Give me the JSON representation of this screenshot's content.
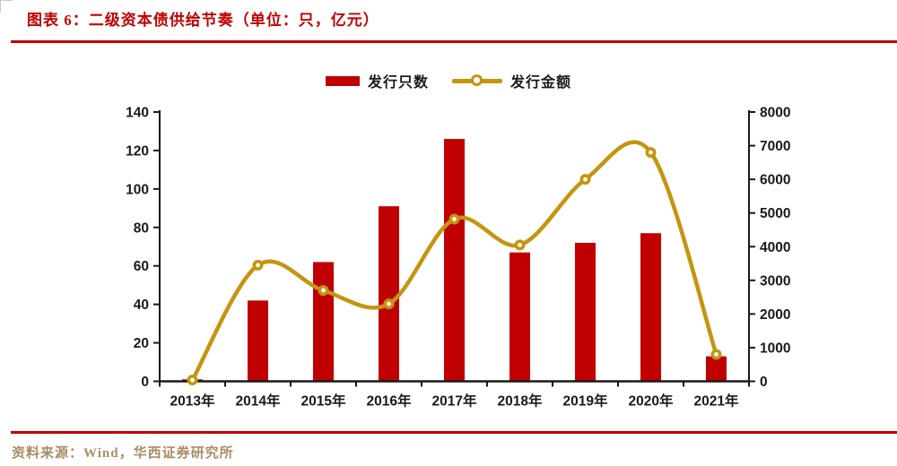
{
  "header": {
    "title": "图表 6：二级资本债供给节奏（单位：只，亿元）"
  },
  "legend": {
    "items": [
      {
        "label": "发行只数",
        "swatch": "bar"
      },
      {
        "label": "发行金额",
        "swatch": "line-marker"
      }
    ]
  },
  "footer": {
    "source": "资料来源：Wind，华西证券研究所"
  },
  "chart_data": {
    "type": "bar",
    "subtype": "bar+line-combo",
    "title": "二级资本债供给节奏（单位：只，亿元）",
    "categories": [
      "2013年",
      "2014年",
      "2015年",
      "2016年",
      "2017年",
      "2018年",
      "2019年",
      "2020年",
      "2021年"
    ],
    "series": [
      {
        "name": "发行只数",
        "type": "bar",
        "axis": "left",
        "values": [
          1,
          42,
          62,
          91,
          126,
          67,
          72,
          77,
          13
        ]
      },
      {
        "name": "发行金额",
        "type": "line",
        "axis": "right",
        "values": [
          30,
          3450,
          2700,
          2300,
          4820,
          4050,
          6000,
          6800,
          800
        ]
      }
    ],
    "left_axis": {
      "min": 0,
      "max": 140,
      "step": 20,
      "ticks": [
        0,
        20,
        40,
        60,
        80,
        100,
        120,
        140
      ]
    },
    "right_axis": {
      "min": 0,
      "max": 8000,
      "step": 1000,
      "ticks": [
        0,
        1000,
        2000,
        3000,
        4000,
        5000,
        6000,
        7000,
        8000
      ]
    },
    "grid": false,
    "legend_position": "top-center",
    "colors": {
      "bar": "#c00000",
      "line": "#c49511",
      "marker_fill": "#ffffff",
      "axis": "#1a1a1a",
      "tick_label": "#1a1a1a",
      "title": "#c00000",
      "source_text": "#a78d64"
    }
  }
}
